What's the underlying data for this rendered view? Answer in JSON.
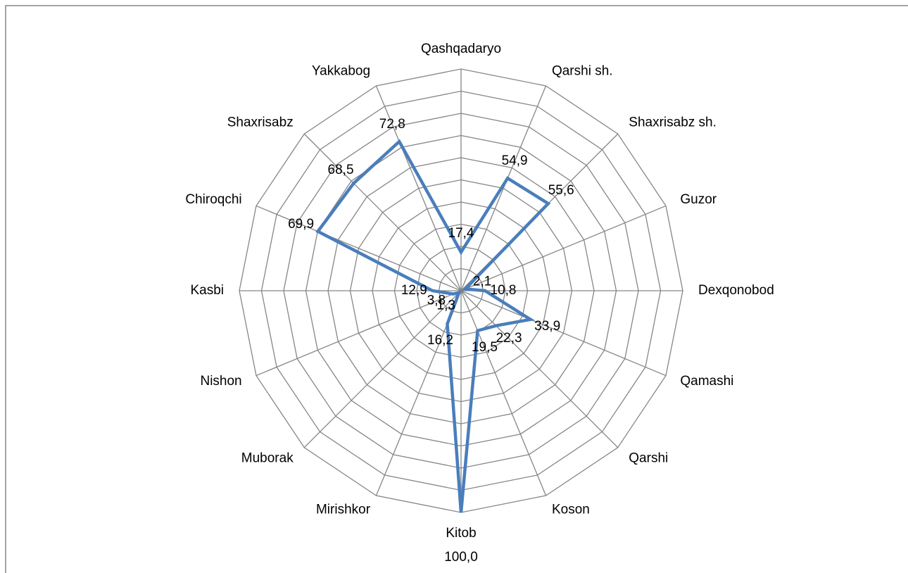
{
  "chart_data": {
    "type": "radar",
    "categories": [
      "Qashqadaryo",
      "Qarshi sh.",
      "Shaxrisabz sh.",
      "Guzor",
      "Dexqonobod",
      "Qamashi",
      "Qarshi",
      "Koson",
      "Kitob",
      "Mirishkor",
      "Muborak",
      "Nishon",
      "Kasbi",
      "Chiroqchi",
      "Shaxrisabz",
      "Yakkabog"
    ],
    "values": [
      17.4,
      54.9,
      55.6,
      2.1,
      10.8,
      33.9,
      22.3,
      19.5,
      100.0,
      16.2,
      1.3,
      3.8,
      12.9,
      69.9,
      68.5,
      72.8
    ],
    "value_labels": [
      "17,4",
      "54,9",
      "55,6",
      "2,1",
      "10,8",
      "33,9",
      "22,3",
      "19,5",
      "100,0",
      "16,2",
      "1,3",
      "3,8",
      "12,9",
      "69,9",
      "68,5",
      "72,8"
    ],
    "color": "#4a7ebb",
    "ylim": [
      0,
      100
    ],
    "yticks": [
      0,
      10,
      20,
      30,
      40,
      50,
      60,
      70,
      80,
      90,
      100
    ],
    "grid": true
  }
}
